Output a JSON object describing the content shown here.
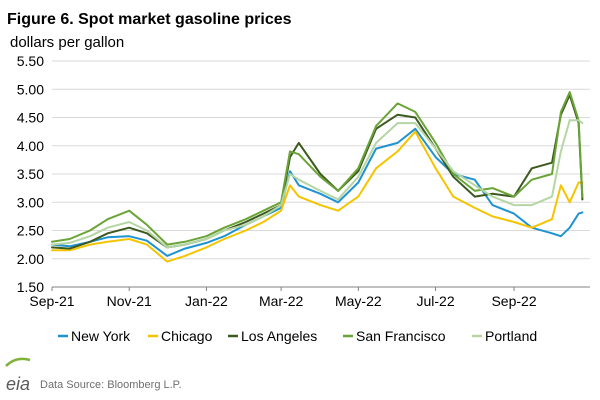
{
  "chart_data": {
    "type": "line",
    "title": "Figure 6. Spot market gasoline prices",
    "ylabel": "dollars per gallon",
    "xlabel": "",
    "ylim": [
      1.5,
      5.5
    ],
    "ytick_labels": [
      "5.50",
      "5.00",
      "4.50",
      "4.00",
      "3.50",
      "3.00",
      "2.50",
      "2.00",
      "1.50"
    ],
    "xtick_labels": [
      "Sep-21",
      "Nov-21",
      "Jan-22",
      "Mar-22",
      "May-22",
      "Jul-22",
      "Sep-22"
    ],
    "xlim": [
      "2021-09-01",
      "2022-10-31"
    ],
    "grid": "horizontal",
    "legend_position": "bottom",
    "x": [
      "2021-09-01",
      "2021-09-15",
      "2021-10-01",
      "2021-10-15",
      "2021-11-01",
      "2021-11-15",
      "2021-12-01",
      "2021-12-15",
      "2022-01-01",
      "2022-01-15",
      "2022-02-01",
      "2022-02-15",
      "2022-03-01",
      "2022-03-08",
      "2022-03-15",
      "2022-04-01",
      "2022-04-15",
      "2022-05-01",
      "2022-05-15",
      "2022-06-01",
      "2022-06-15",
      "2022-07-01",
      "2022-07-15",
      "2022-08-01",
      "2022-08-15",
      "2022-09-01",
      "2022-09-15",
      "2022-10-01",
      "2022-10-08",
      "2022-10-15",
      "2022-10-22",
      "2022-10-25"
    ],
    "series": [
      {
        "name": "New York",
        "color": "#1f93d1",
        "values": [
          2.25,
          2.22,
          2.3,
          2.38,
          2.4,
          2.32,
          2.05,
          2.18,
          2.28,
          2.4,
          2.6,
          2.75,
          2.9,
          3.55,
          3.3,
          3.15,
          3.0,
          3.35,
          3.95,
          4.05,
          4.3,
          3.8,
          3.5,
          3.4,
          2.95,
          2.8,
          2.55,
          2.45,
          2.4,
          2.55,
          2.8,
          2.82
        ]
      },
      {
        "name": "Chicago",
        "color": "#f5c400",
        "values": [
          2.15,
          2.15,
          2.25,
          2.3,
          2.35,
          2.25,
          1.95,
          2.05,
          2.2,
          2.35,
          2.5,
          2.65,
          2.85,
          3.3,
          3.1,
          2.95,
          2.85,
          3.1,
          3.6,
          3.9,
          4.25,
          3.6,
          3.1,
          2.9,
          2.75,
          2.65,
          2.55,
          2.7,
          3.3,
          3.0,
          3.35,
          3.35
        ]
      },
      {
        "name": "Los Angeles",
        "color": "#3c5a1e",
        "values": [
          2.2,
          2.18,
          2.3,
          2.45,
          2.55,
          2.45,
          2.2,
          2.25,
          2.35,
          2.5,
          2.65,
          2.8,
          2.95,
          3.8,
          4.05,
          3.5,
          3.2,
          3.55,
          4.3,
          4.55,
          4.5,
          3.95,
          3.45,
          3.1,
          3.15,
          3.1,
          3.6,
          3.7,
          4.55,
          4.9,
          4.4,
          3.05
        ]
      },
      {
        "name": "San Francisco",
        "color": "#6aa437",
        "values": [
          2.3,
          2.35,
          2.5,
          2.7,
          2.85,
          2.6,
          2.25,
          2.3,
          2.4,
          2.55,
          2.7,
          2.85,
          3.0,
          3.9,
          3.85,
          3.45,
          3.2,
          3.6,
          4.35,
          4.75,
          4.6,
          4.05,
          3.5,
          3.2,
          3.25,
          3.1,
          3.4,
          3.5,
          4.6,
          4.95,
          4.45,
          3.1
        ]
      },
      {
        "name": "Portland",
        "color": "#b5d6a4",
        "values": [
          2.25,
          2.28,
          2.4,
          2.55,
          2.65,
          2.5,
          2.2,
          2.25,
          2.35,
          2.5,
          2.6,
          2.75,
          2.95,
          3.5,
          3.4,
          3.2,
          3.05,
          3.45,
          4.05,
          4.4,
          4.4,
          3.95,
          3.55,
          3.3,
          3.1,
          2.95,
          2.95,
          3.1,
          3.9,
          4.45,
          4.45,
          4.4
        ]
      }
    ]
  },
  "source": "Data Source: Bloomberg L.P.",
  "logo": "eia"
}
